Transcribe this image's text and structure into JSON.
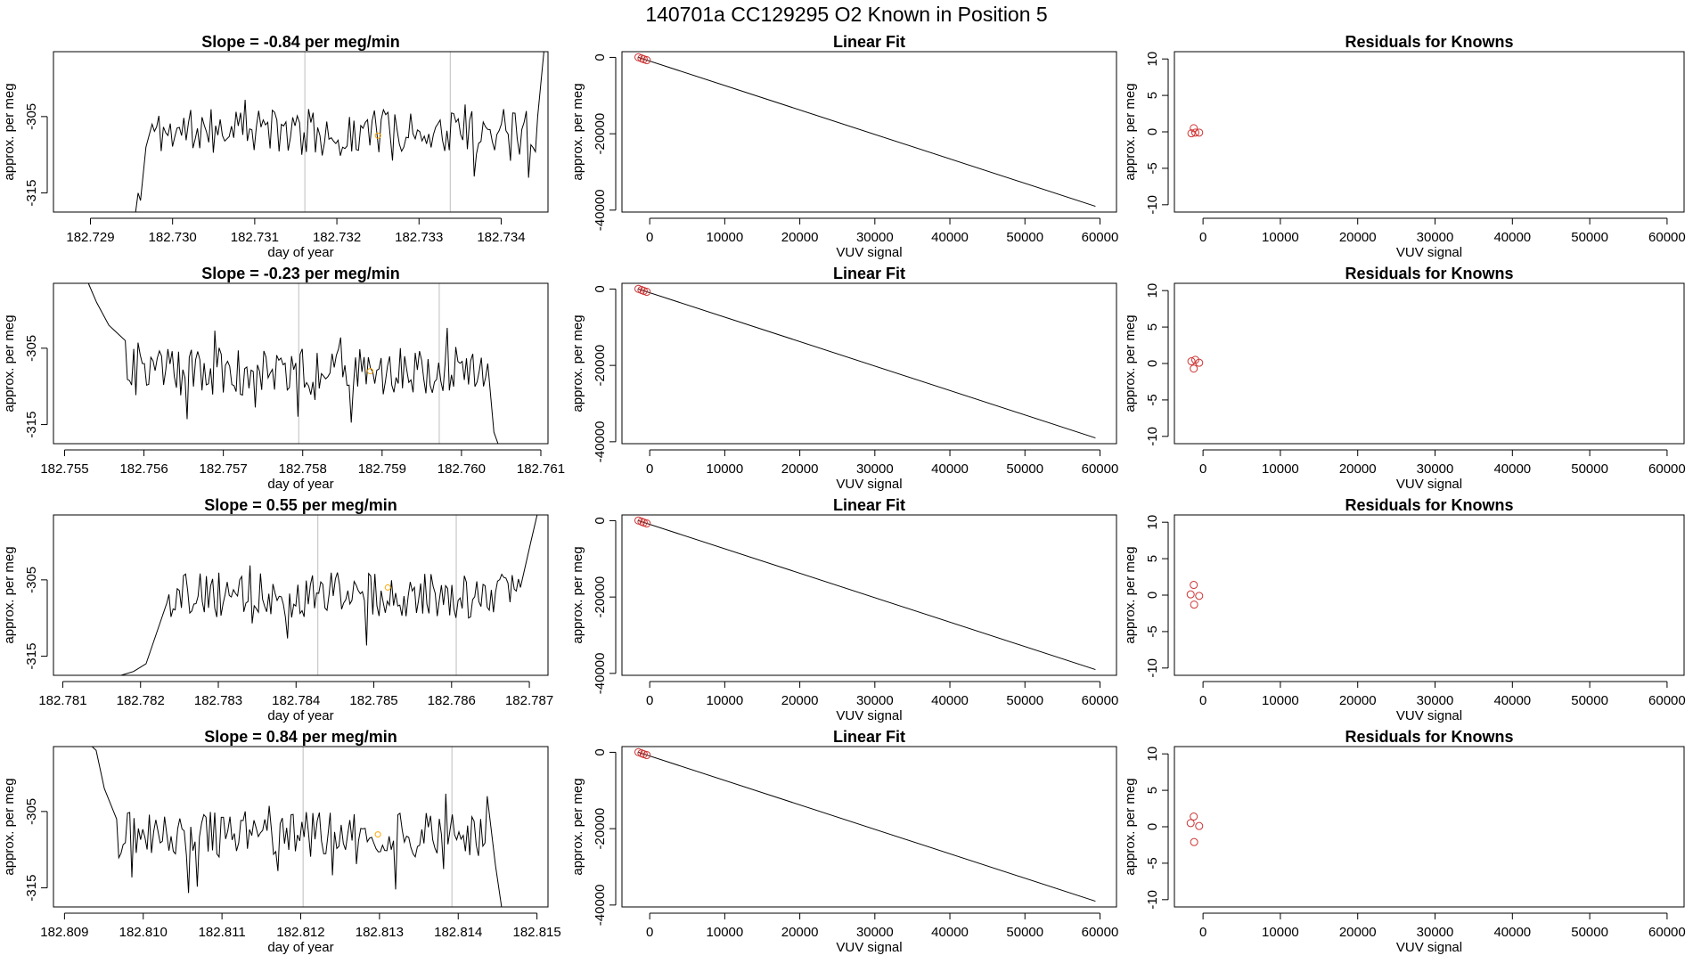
{
  "figure": {
    "title": "140701a      CC129295    O2 Known in Position  5"
  },
  "colors": {
    "line": "#000000",
    "frame": "#000000",
    "vline": "#bebebe",
    "orange_point": "#ffa500",
    "red_point": "#cd3333"
  },
  "labels": {
    "ts_xlabel": "day of year",
    "ts_ylabel": "approx. per meg",
    "fit_title": "Linear Fit",
    "fit_xlabel": "VUV signal",
    "fit_ylabel": "approx. per meg",
    "res_title": "Residuals for Knowns",
    "res_xlabel": "VUV signal",
    "res_ylabel": "approx. per meg"
  },
  "chart_data": [
    {
      "type": "line",
      "row": 0,
      "title": "Slope =  -0.84  per meg/min",
      "xlabel": "day of year",
      "ylabel": "approx. per meg",
      "xlim": [
        182.72855,
        182.73457
      ],
      "ylim": [
        -317.5,
        -296.5
      ],
      "xticks": [
        "182.729",
        "182.730",
        "182.731",
        "182.732",
        "182.733",
        "182.734"
      ],
      "yticks": [
        -305,
        -315
      ],
      "x_start": 182.72955,
      "x_end": 182.73457,
      "level": -307,
      "noise": 3.0,
      "seed": 11,
      "head": [
        [
          0.0,
          -318
        ],
        [
          0.006,
          -315
        ],
        [
          0.012,
          -316
        ],
        [
          0.025,
          -309
        ],
        [
          0.04,
          -306
        ]
      ],
      "tail": [
        [
          0.975,
          -305
        ],
        [
          0.99,
          -296
        ],
        [
          1.0,
          -293
        ]
      ],
      "vlines": [
        182.73161,
        182.73338
      ],
      "orange_point": [
        182.7325,
        -307.5
      ]
    },
    {
      "type": "line",
      "row": 1,
      "title": "Slope =  -0.23  per meg/min",
      "xlabel": "day of year",
      "ylabel": "approx. per meg",
      "xlim": [
        182.75486,
        182.76109
      ],
      "ylim": [
        -317.5,
        -296.5
      ],
      "xticks": [
        "182.755",
        "182.756",
        "182.757",
        "182.758",
        "182.759",
        "182.760",
        "182.761"
      ],
      "yticks": [
        -305,
        -315
      ],
      "x_start": 182.7553,
      "x_end": 182.76046,
      "level": -308,
      "noise": 3.2,
      "seed": 23,
      "head": [
        [
          0.0,
          -295
        ],
        [
          0.02,
          -299
        ],
        [
          0.05,
          -302
        ],
        [
          0.09,
          -304
        ]
      ],
      "tail": [
        [
          0.975,
          -307
        ],
        [
          0.99,
          -316
        ],
        [
          1.0,
          -320
        ]
      ],
      "vlines": [
        182.75795,
        182.75972
      ],
      "orange_point": [
        182.75885,
        -308
      ]
    },
    {
      "type": "line",
      "row": 2,
      "title": "Slope =  0.55  per meg/min",
      "xlabel": "day of year",
      "ylabel": "approx. per meg",
      "xlim": [
        182.78088,
        182.78724
      ],
      "ylim": [
        -317.5,
        -296.5
      ],
      "xticks": [
        "182.781",
        "182.782",
        "182.783",
        "182.784",
        "182.785",
        "182.786",
        "182.787"
      ],
      "yticks": [
        -305,
        -315
      ],
      "x_start": 182.78175,
      "x_end": 182.7871,
      "level": -307,
      "noise": 3.0,
      "seed": 37,
      "head": [
        [
          0.0,
          -318
        ],
        [
          0.03,
          -317
        ],
        [
          0.06,
          -316
        ],
        [
          0.085,
          -312
        ],
        [
          0.11,
          -308
        ]
      ],
      "tail": [
        [
          0.96,
          -306
        ],
        [
          0.985,
          -300
        ],
        [
          1.0,
          -296
        ]
      ],
      "vlines": [
        182.78428,
        182.78606
      ],
      "orange_point": [
        182.78518,
        -306
      ]
    },
    {
      "type": "line",
      "row": 3,
      "title": "Slope =  0.84  per meg/min",
      "xlabel": "day of year",
      "ylabel": "approx. per meg",
      "xlim": [
        182.80886,
        182.81514
      ],
      "ylim": [
        -317.5,
        -296.5
      ],
      "xticks": [
        "182.809",
        "182.810",
        "182.811",
        "182.812",
        "182.813",
        "182.814",
        "182.815"
      ],
      "yticks": [
        -305,
        -315
      ],
      "x_start": 182.80935,
      "x_end": 182.81455,
      "level": -308,
      "noise": 3.0,
      "seed": 51,
      "head": [
        [
          0.0,
          -294
        ],
        [
          0.01,
          -297
        ],
        [
          0.03,
          -302
        ],
        [
          0.06,
          -306
        ]
      ],
      "tail": [
        [
          0.965,
          -303
        ],
        [
          0.985,
          -312
        ],
        [
          1.0,
          -318
        ]
      ],
      "vlines": [
        182.81203,
        182.81392
      ],
      "orange_point": [
        182.81298,
        -308
      ]
    },
    {
      "type": "scatter",
      "row": 0,
      "title": "Linear Fit",
      "xlabel": "VUV signal",
      "ylabel": "approx. per meg",
      "xlim": [
        -3700,
        62200
      ],
      "ylim": [
        -40500,
        1500
      ],
      "xticks": [
        0,
        10000,
        20000,
        30000,
        40000,
        50000,
        60000
      ],
      "yticks": [
        0,
        -20000,
        -40000
      ],
      "points": [
        [
          -1500,
          50
        ],
        [
          -1100,
          -250
        ],
        [
          -800,
          -480
        ],
        [
          -400,
          -720
        ]
      ],
      "fit_line": [
        [
          -1500,
          0
        ],
        [
          59400,
          -39000
        ]
      ]
    },
    {
      "type": "scatter",
      "row": 1,
      "title": "Linear Fit",
      "xlabel": "VUV signal",
      "ylabel": "approx. per meg",
      "xlim": [
        -3700,
        62200
      ],
      "ylim": [
        -40500,
        1500
      ],
      "xticks": [
        0,
        10000,
        20000,
        30000,
        40000,
        50000,
        60000
      ],
      "yticks": [
        0,
        -20000,
        -40000
      ],
      "points": [
        [
          -1500,
          50
        ],
        [
          -1100,
          -250
        ],
        [
          -800,
          -480
        ],
        [
          -400,
          -720
        ]
      ],
      "fit_line": [
        [
          -1500,
          0
        ],
        [
          59400,
          -39000
        ]
      ]
    },
    {
      "type": "scatter",
      "row": 2,
      "title": "Linear Fit",
      "xlabel": "VUV signal",
      "ylabel": "approx. per meg",
      "xlim": [
        -3700,
        62200
      ],
      "ylim": [
        -40500,
        1500
      ],
      "xticks": [
        0,
        10000,
        20000,
        30000,
        40000,
        50000,
        60000
      ],
      "yticks": [
        0,
        -20000,
        -40000
      ],
      "points": [
        [
          -1500,
          50
        ],
        [
          -1100,
          -250
        ],
        [
          -800,
          -480
        ],
        [
          -400,
          -720
        ]
      ],
      "fit_line": [
        [
          -1500,
          0
        ],
        [
          59400,
          -39000
        ]
      ]
    },
    {
      "type": "scatter",
      "row": 3,
      "title": "Linear Fit",
      "xlabel": "VUV signal",
      "ylabel": "approx. per meg",
      "xlim": [
        -3700,
        62200
      ],
      "ylim": [
        -40500,
        1500
      ],
      "xticks": [
        0,
        10000,
        20000,
        30000,
        40000,
        50000,
        60000
      ],
      "yticks": [
        0,
        -20000,
        -40000
      ],
      "points": [
        [
          -1500,
          50
        ],
        [
          -1100,
          -250
        ],
        [
          -800,
          -480
        ],
        [
          -400,
          -720
        ]
      ],
      "fit_line": [
        [
          -1500,
          0
        ],
        [
          59400,
          -39000
        ]
      ]
    },
    {
      "type": "scatter",
      "row": 0,
      "title": "Residuals for Knowns",
      "xlabel": "VUV signal",
      "ylabel": "approx. per meg",
      "xlim": [
        -3700,
        62200
      ],
      "ylim": [
        -11,
        11
      ],
      "xticks": [
        0,
        10000,
        20000,
        30000,
        40000,
        50000,
        60000
      ],
      "yticks": [
        10,
        5,
        0,
        -5,
        -10
      ],
      "points": [
        [
          -1500,
          -0.2
        ],
        [
          -1200,
          0.5
        ],
        [
          -1000,
          -0.1
        ],
        [
          -500,
          -0.1
        ]
      ]
    },
    {
      "type": "scatter",
      "row": 1,
      "title": "Residuals for Knowns",
      "xlabel": "VUV signal",
      "ylabel": "approx. per meg",
      "xlim": [
        -3700,
        62200
      ],
      "ylim": [
        -11,
        11
      ],
      "xticks": [
        0,
        10000,
        20000,
        30000,
        40000,
        50000,
        60000
      ],
      "yticks": [
        10,
        5,
        0,
        -5,
        -10
      ],
      "points": [
        [
          -1500,
          0.3
        ],
        [
          -1200,
          -0.7
        ],
        [
          -1000,
          0.5
        ],
        [
          -500,
          0.1
        ]
      ]
    },
    {
      "type": "scatter",
      "row": 2,
      "title": "Residuals for Knowns",
      "xlabel": "VUV signal",
      "ylabel": "approx. per meg",
      "xlim": [
        -3700,
        62200
      ],
      "ylim": [
        -11,
        11
      ],
      "xticks": [
        0,
        10000,
        20000,
        30000,
        40000,
        50000,
        60000
      ],
      "yticks": [
        10,
        5,
        0,
        -5,
        -10
      ],
      "points": [
        [
          -1600,
          0.1
        ],
        [
          -1200,
          1.4
        ],
        [
          -1150,
          -1.3
        ],
        [
          -500,
          -0.1
        ]
      ]
    },
    {
      "type": "scatter",
      "row": 3,
      "title": "Residuals for Knowns",
      "xlabel": "VUV signal",
      "ylabel": "approx. per meg",
      "xlim": [
        -3700,
        62200
      ],
      "ylim": [
        -11,
        11
      ],
      "xticks": [
        0,
        10000,
        20000,
        30000,
        40000,
        50000,
        60000
      ],
      "yticks": [
        10,
        5,
        0,
        -5,
        -10
      ],
      "points": [
        [
          -1600,
          0.5
        ],
        [
          -1200,
          1.4
        ],
        [
          -1150,
          -2.1
        ],
        [
          -500,
          0.1
        ]
      ]
    }
  ]
}
